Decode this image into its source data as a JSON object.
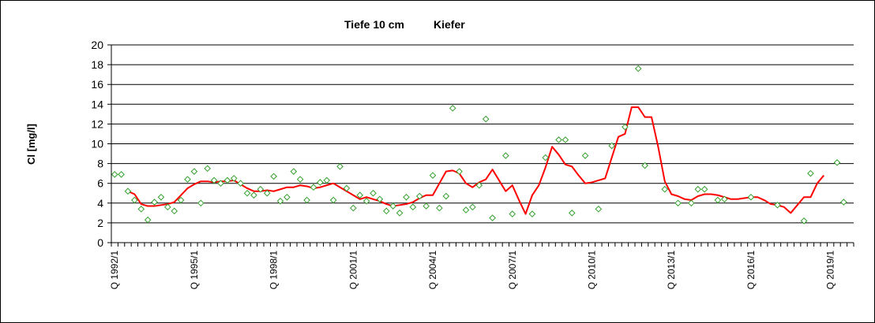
{
  "chart_data": {
    "type": "line",
    "title_parts": [
      "Tiefe  10 cm",
      "Kiefer"
    ],
    "ylabel": "Cl [mg/l]",
    "xlabel": "",
    "ylim": [
      0,
      20
    ],
    "yticks": [
      0,
      2,
      4,
      6,
      8,
      10,
      12,
      14,
      16,
      18,
      20
    ],
    "x_axis_unit": "quarter",
    "x_start": "Q 1992/1",
    "x_end": "Q 2019/4",
    "x_tick_labels": [
      "Q 1992/1",
      "Q 1995/1",
      "Q 1998/1",
      "Q 2001/1",
      "Q 2004/1",
      "Q 2007/1",
      "Q 2010/1",
      "Q 2013/1",
      "Q 2016/1",
      "Q 2019/1"
    ],
    "grid": "horizontal",
    "legend": "none",
    "series": [
      {
        "kind": "scatter",
        "marker": "diamond-open",
        "color": "#33a02c",
        "points": [
          [
            "1992/1",
            6.9
          ],
          [
            "1992/2",
            6.9
          ],
          [
            "1992/3",
            5.2
          ],
          [
            "1992/4",
            4.3
          ],
          [
            "1993/1",
            3.4
          ],
          [
            "1993/2",
            2.3
          ],
          [
            "1993/3",
            4.1
          ],
          [
            "1993/4",
            4.6
          ],
          [
            "1994/1",
            3.6
          ],
          [
            "1994/2",
            3.2
          ],
          [
            "1994/3",
            4.3
          ],
          [
            "1994/4",
            6.4
          ],
          [
            "1995/1",
            7.2
          ],
          [
            "1995/2",
            4.0
          ],
          [
            "1995/3",
            7.5
          ],
          [
            "1995/4",
            6.3
          ],
          [
            "1996/1",
            6.0
          ],
          [
            "1996/2",
            6.3
          ],
          [
            "1996/3",
            6.5
          ],
          [
            "1996/4",
            6.0
          ],
          [
            "1997/1",
            5.0
          ],
          [
            "1997/2",
            4.8
          ],
          [
            "1997/3",
            5.4
          ],
          [
            "1997/4",
            5.0
          ],
          [
            "1998/1",
            6.7
          ],
          [
            "1998/2",
            4.2
          ],
          [
            "1998/3",
            4.6
          ],
          [
            "1998/4",
            7.2
          ],
          [
            "1999/1",
            6.4
          ],
          [
            "1999/2",
            4.3
          ],
          [
            "1999/3",
            5.6
          ],
          [
            "1999/4",
            6.1
          ],
          [
            "2000/1",
            6.3
          ],
          [
            "2000/2",
            4.3
          ],
          [
            "2000/3",
            7.7
          ],
          [
            "2000/4",
            5.5
          ],
          [
            "2001/1",
            3.5
          ],
          [
            "2001/2",
            4.8
          ],
          [
            "2001/3",
            4.2
          ],
          [
            "2001/4",
            5.0
          ],
          [
            "2002/1",
            4.4
          ],
          [
            "2002/2",
            3.2
          ],
          [
            "2002/3",
            3.7
          ],
          [
            "2002/4",
            3.0
          ],
          [
            "2003/1",
            4.6
          ],
          [
            "2003/2",
            3.6
          ],
          [
            "2003/3",
            4.7
          ],
          [
            "2003/4",
            3.7
          ],
          [
            "2004/1",
            6.8
          ],
          [
            "2004/2",
            3.5
          ],
          [
            "2004/3",
            4.7
          ],
          [
            "2004/4",
            13.6
          ],
          [
            "2005/1",
            7.2
          ],
          [
            "2005/2",
            3.3
          ],
          [
            "2005/3",
            3.6
          ],
          [
            "2005/4",
            5.8
          ],
          [
            "2006/1",
            12.5
          ],
          [
            "2006/2",
            2.5
          ],
          [
            "2006/4",
            8.8
          ],
          [
            "2007/1",
            2.9
          ],
          [
            "2007/4",
            2.9
          ],
          [
            "2008/2",
            8.6
          ],
          [
            "2008/4",
            10.4
          ],
          [
            "2009/1",
            10.4
          ],
          [
            "2009/2",
            3.0
          ],
          [
            "2009/4",
            8.8
          ],
          [
            "2010/2",
            3.4
          ],
          [
            "2010/4",
            9.8
          ],
          [
            "2011/2",
            11.7
          ],
          [
            "2011/4",
            17.6
          ],
          [
            "2012/1",
            7.8
          ],
          [
            "2012/4",
            5.4
          ],
          [
            "2013/2",
            4.0
          ],
          [
            "2013/4",
            4.0
          ],
          [
            "2014/1",
            5.4
          ],
          [
            "2014/2",
            5.4
          ],
          [
            "2014/4",
            4.3
          ],
          [
            "2015/1",
            4.4
          ],
          [
            "2016/1",
            4.6
          ],
          [
            "2017/1",
            3.8
          ],
          [
            "2018/1",
            2.2
          ],
          [
            "2018/2",
            7.0
          ],
          [
            "2019/2",
            8.1
          ],
          [
            "2019/3",
            4.1
          ]
        ]
      },
      {
        "kind": "line",
        "color": "#ff0000",
        "points": [
          [
            "1992/3",
            5.2
          ],
          [
            "1992/4",
            4.9
          ],
          [
            "1993/1",
            3.9
          ],
          [
            "1993/2",
            3.7
          ],
          [
            "1993/3",
            3.7
          ],
          [
            "1993/4",
            3.8
          ],
          [
            "1994/1",
            3.9
          ],
          [
            "1994/2",
            4.1
          ],
          [
            "1994/3",
            4.8
          ],
          [
            "1994/4",
            5.5
          ],
          [
            "1995/1",
            5.9
          ],
          [
            "1995/2",
            6.2
          ],
          [
            "1995/3",
            6.2
          ],
          [
            "1995/4",
            6.1
          ],
          [
            "1996/1",
            6.2
          ],
          [
            "1996/2",
            6.2
          ],
          [
            "1996/3",
            6.3
          ],
          [
            "1996/4",
            5.9
          ],
          [
            "1997/1",
            5.5
          ],
          [
            "1997/2",
            5.2
          ],
          [
            "1997/3",
            5.2
          ],
          [
            "1997/4",
            5.3
          ],
          [
            "1998/1",
            5.2
          ],
          [
            "1998/2",
            5.4
          ],
          [
            "1998/3",
            5.6
          ],
          [
            "1998/4",
            5.6
          ],
          [
            "1999/1",
            5.8
          ],
          [
            "1999/2",
            5.7
          ],
          [
            "1999/3",
            5.5
          ],
          [
            "1999/4",
            5.6
          ],
          [
            "2000/1",
            5.8
          ],
          [
            "2000/2",
            6.0
          ],
          [
            "2000/3",
            5.6
          ],
          [
            "2000/4",
            5.2
          ],
          [
            "2001/1",
            4.8
          ],
          [
            "2001/2",
            4.4
          ],
          [
            "2001/3",
            4.6
          ],
          [
            "2001/4",
            4.4
          ],
          [
            "2002/1",
            4.2
          ],
          [
            "2002/2",
            3.9
          ],
          [
            "2002/3",
            3.7
          ],
          [
            "2002/4",
            3.8
          ],
          [
            "2003/1",
            3.9
          ],
          [
            "2003/2",
            4.1
          ],
          [
            "2003/3",
            4.5
          ],
          [
            "2003/4",
            4.8
          ],
          [
            "2004/1",
            4.8
          ],
          [
            "2004/2",
            6.0
          ],
          [
            "2004/3",
            7.2
          ],
          [
            "2004/4",
            7.3
          ],
          [
            "2005/1",
            7.0
          ],
          [
            "2005/2",
            6.0
          ],
          [
            "2005/3",
            5.6
          ],
          [
            "2005/4",
            6.1
          ],
          [
            "2006/1",
            6.4
          ],
          [
            "2006/2",
            7.4
          ],
          [
            "2006/3",
            6.3
          ],
          [
            "2006/4",
            5.2
          ],
          [
            "2007/1",
            5.8
          ],
          [
            "2007/2",
            4.3
          ],
          [
            "2007/3",
            2.9
          ],
          [
            "2007/4",
            4.8
          ],
          [
            "2008/1",
            5.8
          ],
          [
            "2008/2",
            7.6
          ],
          [
            "2008/3",
            9.7
          ],
          [
            "2008/4",
            8.9
          ],
          [
            "2009/1",
            7.9
          ],
          [
            "2009/2",
            7.7
          ],
          [
            "2009/3",
            6.8
          ],
          [
            "2009/4",
            6.0
          ],
          [
            "2010/1",
            6.1
          ],
          [
            "2010/2",
            6.3
          ],
          [
            "2010/3",
            6.5
          ],
          [
            "2010/4",
            8.6
          ],
          [
            "2011/1",
            10.7
          ],
          [
            "2011/2",
            11.0
          ],
          [
            "2011/3",
            13.7
          ],
          [
            "2011/4",
            13.7
          ],
          [
            "2012/1",
            12.7
          ],
          [
            "2012/2",
            12.7
          ],
          [
            "2012/3",
            9.7
          ],
          [
            "2012/4",
            6.2
          ],
          [
            "2013/1",
            4.9
          ],
          [
            "2013/2",
            4.7
          ],
          [
            "2013/3",
            4.4
          ],
          [
            "2013/4",
            4.3
          ],
          [
            "2014/1",
            4.7
          ],
          [
            "2014/2",
            4.9
          ],
          [
            "2014/3",
            4.9
          ],
          [
            "2014/4",
            4.8
          ],
          [
            "2015/1",
            4.6
          ],
          [
            "2015/2",
            4.4
          ],
          [
            "2015/3",
            4.4
          ],
          [
            "2015/4",
            4.5
          ],
          [
            "2016/1",
            4.6
          ],
          [
            "2016/2",
            4.6
          ],
          [
            "2016/3",
            4.3
          ],
          [
            "2016/4",
            3.9
          ],
          [
            "2017/1",
            3.8
          ],
          [
            "2017/2",
            3.6
          ],
          [
            "2017/3",
            3.0
          ],
          [
            "2017/4",
            3.8
          ],
          [
            "2018/1",
            4.6
          ],
          [
            "2018/2",
            4.6
          ],
          [
            "2018/3",
            6.0
          ],
          [
            "2018/4",
            6.8
          ]
        ]
      }
    ]
  }
}
